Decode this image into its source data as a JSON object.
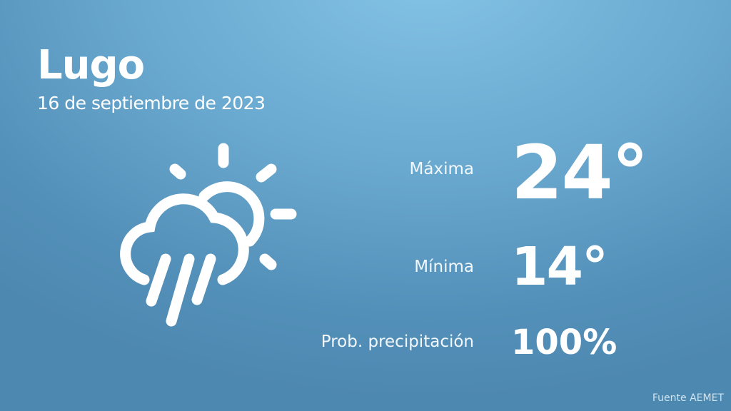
{
  "location": {
    "city": "Lugo",
    "date": "16 de septiembre de 2023"
  },
  "weather_icon": "cloud-rain-sun-icon",
  "stats": {
    "max_label": "Máxima",
    "max_value": "24°",
    "min_label": "Mínima",
    "min_value": "14°",
    "precip_label": "Prob. precipitación",
    "precip_value": "100%"
  },
  "source": "Fuente AEMET",
  "colors": {
    "background_top": "#84c4e6",
    "background_bottom": "#4d88b0",
    "text": "#ffffff"
  }
}
